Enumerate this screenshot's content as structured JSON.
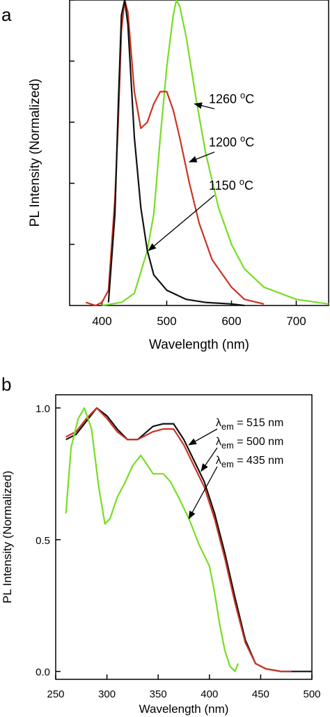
{
  "chart_data": [
    {
      "panel": "a",
      "type": "line",
      "xlabel": "Wavelength (nm)",
      "ylabel": "PL Intensity (Normalized)",
      "xlim": [
        350,
        750
      ],
      "ylim": [
        0,
        1.0
      ],
      "xticks": [
        400,
        500,
        600,
        700
      ],
      "xtick_labels": [
        "400",
        "500",
        "600",
        "700"
      ],
      "yticks_unlabeled": [
        0.2,
        0.4,
        0.6,
        0.8,
        1.0
      ],
      "series": [
        {
          "name": "1260 °C",
          "color": "#77dd22",
          "points": [
            [
              400,
              0
            ],
            [
              430,
              0.01
            ],
            [
              450,
              0.04
            ],
            [
              470,
              0.18
            ],
            [
              480,
              0.3
            ],
            [
              490,
              0.55
            ],
            [
              500,
              0.78
            ],
            [
              510,
              0.95
            ],
            [
              515,
              1.0
            ],
            [
              520,
              0.98
            ],
            [
              530,
              0.88
            ],
            [
              545,
              0.68
            ],
            [
              560,
              0.5
            ],
            [
              580,
              0.32
            ],
            [
              600,
              0.2
            ],
            [
              620,
              0.12
            ],
            [
              650,
              0.06
            ],
            [
              700,
              0.02
            ],
            [
              750,
              0.005
            ]
          ]
        },
        {
          "name": "1200 °C",
          "color": "#cc3322",
          "points": [
            [
              375,
              0.01
            ],
            [
              390,
              0
            ],
            [
              400,
              0.01
            ],
            [
              410,
              0.05
            ],
            [
              420,
              0.35
            ],
            [
              425,
              0.6
            ],
            [
              430,
              0.9
            ],
            [
              435,
              1.0
            ],
            [
              440,
              0.96
            ],
            [
              450,
              0.7
            ],
            [
              460,
              0.58
            ],
            [
              470,
              0.6
            ],
            [
              480,
              0.66
            ],
            [
              490,
              0.7
            ],
            [
              500,
              0.7
            ],
            [
              510,
              0.64
            ],
            [
              520,
              0.55
            ],
            [
              535,
              0.4
            ],
            [
              550,
              0.27
            ],
            [
              570,
              0.15
            ],
            [
              600,
              0.06
            ],
            [
              620,
              0.02
            ],
            [
              650,
              0.005
            ]
          ]
        },
        {
          "name": "1150 °C",
          "color": "#111111",
          "points": [
            [
              410,
              0.01
            ],
            [
              420,
              0.3
            ],
            [
              425,
              0.65
            ],
            [
              430,
              0.95
            ],
            [
              435,
              1.0
            ],
            [
              440,
              0.92
            ],
            [
              450,
              0.55
            ],
            [
              460,
              0.32
            ],
            [
              470,
              0.18
            ],
            [
              480,
              0.1
            ],
            [
              500,
              0.05
            ],
            [
              530,
              0.02
            ],
            [
              560,
              0.01
            ],
            [
              600,
              0.005
            ],
            [
              620,
              0
            ]
          ]
        }
      ],
      "annotations": [
        {
          "text": "1260 °C",
          "target": [
            543,
            0.66
          ]
        },
        {
          "text": "1200 °C",
          "target": [
            535,
            0.47
          ]
        },
        {
          "text": "1150 °C",
          "target": [
            472,
            0.18
          ]
        }
      ]
    },
    {
      "panel": "b",
      "type": "line",
      "xlabel": "Wavelength (nm)",
      "ylabel": "PL Intensity (Normalized)",
      "xlim": [
        250,
        500
      ],
      "ylim": [
        -0.03,
        1.05
      ],
      "xticks": [
        250,
        300,
        350,
        400,
        450,
        500
      ],
      "xtick_labels": [
        "250",
        "300",
        "350",
        "400",
        "450",
        "500"
      ],
      "yticks": [
        0.0,
        0.5,
        1.0
      ],
      "ytick_labels": [
        "0.0",
        "0.5",
        "1.0"
      ],
      "series": [
        {
          "name": "λem = 515 nm",
          "color": "#111111",
          "points": [
            [
              260,
              0.88
            ],
            [
              270,
              0.9
            ],
            [
              280,
              0.95
            ],
            [
              290,
              1.0
            ],
            [
              300,
              0.97
            ],
            [
              310,
              0.92
            ],
            [
              320,
              0.88
            ],
            [
              330,
              0.88
            ],
            [
              345,
              0.93
            ],
            [
              355,
              0.94
            ],
            [
              365,
              0.94
            ],
            [
              375,
              0.88
            ],
            [
              385,
              0.8
            ],
            [
              395,
              0.72
            ],
            [
              405,
              0.6
            ],
            [
              415,
              0.45
            ],
            [
              425,
              0.28
            ],
            [
              435,
              0.12
            ],
            [
              445,
              0.03
            ],
            [
              455,
              0.01
            ],
            [
              470,
              0
            ],
            [
              500,
              0
            ]
          ]
        },
        {
          "name": "λem = 500 nm",
          "color": "#cc3322",
          "points": [
            [
              260,
              0.89
            ],
            [
              270,
              0.91
            ],
            [
              280,
              0.96
            ],
            [
              290,
              1.0
            ],
            [
              300,
              0.96
            ],
            [
              310,
              0.91
            ],
            [
              320,
              0.88
            ],
            [
              330,
              0.88
            ],
            [
              345,
              0.91
            ],
            [
              355,
              0.92
            ],
            [
              365,
              0.92
            ],
            [
              375,
              0.86
            ],
            [
              385,
              0.78
            ],
            [
              395,
              0.7
            ],
            [
              405,
              0.58
            ],
            [
              415,
              0.43
            ],
            [
              425,
              0.26
            ],
            [
              435,
              0.11
            ],
            [
              445,
              0.03
            ],
            [
              455,
              0.01
            ],
            [
              470,
              0
            ],
            [
              480,
              0
            ]
          ]
        },
        {
          "name": "λem = 435 nm",
          "color": "#77dd22",
          "points": [
            [
              260,
              0.6
            ],
            [
              265,
              0.85
            ],
            [
              272,
              0.96
            ],
            [
              278,
              1.0
            ],
            [
              285,
              0.92
            ],
            [
              292,
              0.7
            ],
            [
              298,
              0.56
            ],
            [
              303,
              0.58
            ],
            [
              310,
              0.66
            ],
            [
              318,
              0.72
            ],
            [
              325,
              0.78
            ],
            [
              333,
              0.82
            ],
            [
              340,
              0.78
            ],
            [
              345,
              0.75
            ],
            [
              355,
              0.75
            ],
            [
              362,
              0.72
            ],
            [
              370,
              0.66
            ],
            [
              380,
              0.58
            ],
            [
              390,
              0.48
            ],
            [
              400,
              0.4
            ],
            [
              405,
              0.3
            ],
            [
              410,
              0.18
            ],
            [
              415,
              0.08
            ],
            [
              420,
              0.02
            ],
            [
              425,
              0.0
            ],
            [
              428,
              0.03
            ]
          ]
        }
      ],
      "annotations": [
        {
          "text": "λem = 515 nm",
          "target": [
            380,
            0.86
          ]
        },
        {
          "text": "λem = 500 nm",
          "target": [
            392,
            0.76
          ]
        },
        {
          "text": "λem = 435 nm",
          "target": [
            380,
            0.58
          ]
        }
      ]
    }
  ],
  "panels": {
    "a": {
      "letter": "a"
    },
    "b": {
      "letter": "b"
    }
  }
}
